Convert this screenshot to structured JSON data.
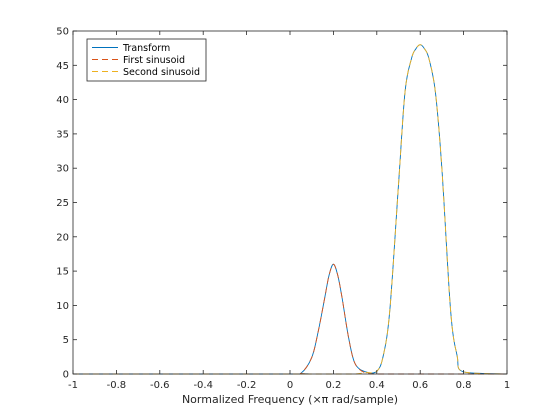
{
  "chart_data": {
    "type": "line",
    "title": "",
    "xlabel": "Normalized Frequency (×π rad/sample)",
    "ylabel": "",
    "xlim": [
      -1,
      1
    ],
    "ylim": [
      0,
      50
    ],
    "xticks": [
      -1,
      -0.8,
      -0.6,
      -0.4,
      -0.2,
      0,
      0.2,
      0.4,
      0.6,
      0.8,
      1
    ],
    "xtick_labels": [
      "-1",
      "-0.8",
      "-0.6",
      "-0.4",
      "-0.2",
      "0",
      "0.2",
      "0.4",
      "0.6",
      "0.8",
      "1"
    ],
    "yticks": [
      0,
      5,
      10,
      15,
      20,
      25,
      30,
      35,
      40,
      45,
      50
    ],
    "ytick_labels": [
      "0",
      "5",
      "10",
      "15",
      "20",
      "25",
      "30",
      "35",
      "40",
      "45",
      "50"
    ],
    "grid": false,
    "legend_position": "top-left",
    "x": [
      -1,
      0,
      0.05,
      0.1,
      0.13,
      0.16,
      0.18,
      0.2,
      0.22,
      0.24,
      0.27,
      0.3,
      0.35,
      0.4,
      0.43,
      0.46,
      0.5,
      0.53,
      0.56,
      0.58,
      0.6,
      0.62,
      0.64,
      0.67,
      0.7,
      0.74,
      0.77,
      0.8,
      1
    ],
    "series": [
      {
        "name": "Transform",
        "color": "#0072bd",
        "dash": "solid",
        "values": [
          0,
          0,
          0.1,
          2.4,
          6.2,
          11.1,
          14.4,
          16.0,
          14.4,
          11.1,
          5.3,
          1.5,
          0.3,
          0.4,
          2.7,
          9.3,
          27.6,
          41.1,
          46.0,
          47.4,
          48.0,
          47.4,
          46.0,
          41.1,
          29.9,
          9.3,
          2.7,
          0.3,
          0
        ]
      },
      {
        "name": "First sinusoid",
        "color": "#d95319",
        "dash": "dashed",
        "values": [
          0,
          0,
          0.1,
          2.4,
          6.2,
          11.1,
          14.4,
          16.0,
          14.4,
          11.1,
          5.3,
          1.5,
          0.1,
          0,
          0,
          0,
          0,
          0,
          0,
          0,
          0,
          0,
          0,
          0,
          0,
          0,
          0,
          0,
          0
        ]
      },
      {
        "name": "Second sinusoid",
        "color": "#edb120",
        "dash": "dashed",
        "values": [
          0,
          0,
          0,
          0,
          0,
          0,
          0,
          0,
          0,
          0,
          0,
          0,
          0.2,
          0.4,
          2.7,
          9.3,
          27.6,
          41.1,
          46.0,
          47.4,
          48.0,
          47.4,
          46.0,
          41.1,
          29.9,
          9.3,
          2.7,
          0.3,
          0
        ]
      }
    ]
  }
}
